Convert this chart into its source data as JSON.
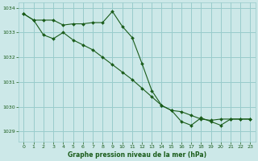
{
  "title": "Graphe pression niveau de la mer (hPa)",
  "background_color": "#cce8e8",
  "grid_color": "#99cccc",
  "line_color": "#1a5c1a",
  "xlim": [
    -0.5,
    23.5
  ],
  "ylim": [
    1028.6,
    1034.2
  ],
  "yticks": [
    1029,
    1030,
    1031,
    1032,
    1033,
    1034
  ],
  "xticks": [
    0,
    1,
    2,
    3,
    4,
    5,
    6,
    7,
    8,
    9,
    10,
    11,
    12,
    13,
    14,
    15,
    16,
    17,
    18,
    19,
    20,
    21,
    22,
    23
  ],
  "series1_x": [
    0,
    1,
    2,
    3,
    4,
    5,
    6,
    7,
    8,
    9,
    10,
    11,
    12,
    13,
    14,
    15,
    16,
    17,
    18,
    19,
    20,
    21,
    22,
    23
  ],
  "series1_y": [
    1033.75,
    1033.5,
    1033.5,
    1033.5,
    1033.3,
    1033.35,
    1033.35,
    1033.4,
    1033.4,
    1033.85,
    1033.25,
    1032.8,
    1031.75,
    1030.65,
    1030.05,
    1029.85,
    1029.8,
    1029.65,
    1029.5,
    1029.45,
    1029.5,
    1029.5,
    1029.5,
    1029.5
  ],
  "series2_x": [
    0,
    1,
    2,
    3,
    4,
    5,
    6,
    7,
    8,
    9,
    10,
    11,
    12,
    13,
    14,
    15,
    16,
    17,
    18,
    19,
    20,
    21,
    22,
    23
  ],
  "series2_y": [
    1033.75,
    1033.5,
    1032.9,
    1032.75,
    1033.0,
    1032.7,
    1032.5,
    1032.3,
    1032.0,
    1031.7,
    1031.4,
    1031.1,
    1030.75,
    1030.4,
    1030.05,
    1029.85,
    1029.4,
    1029.25,
    1029.55,
    1029.4,
    1029.25,
    1029.5,
    1029.5,
    1029.5
  ]
}
